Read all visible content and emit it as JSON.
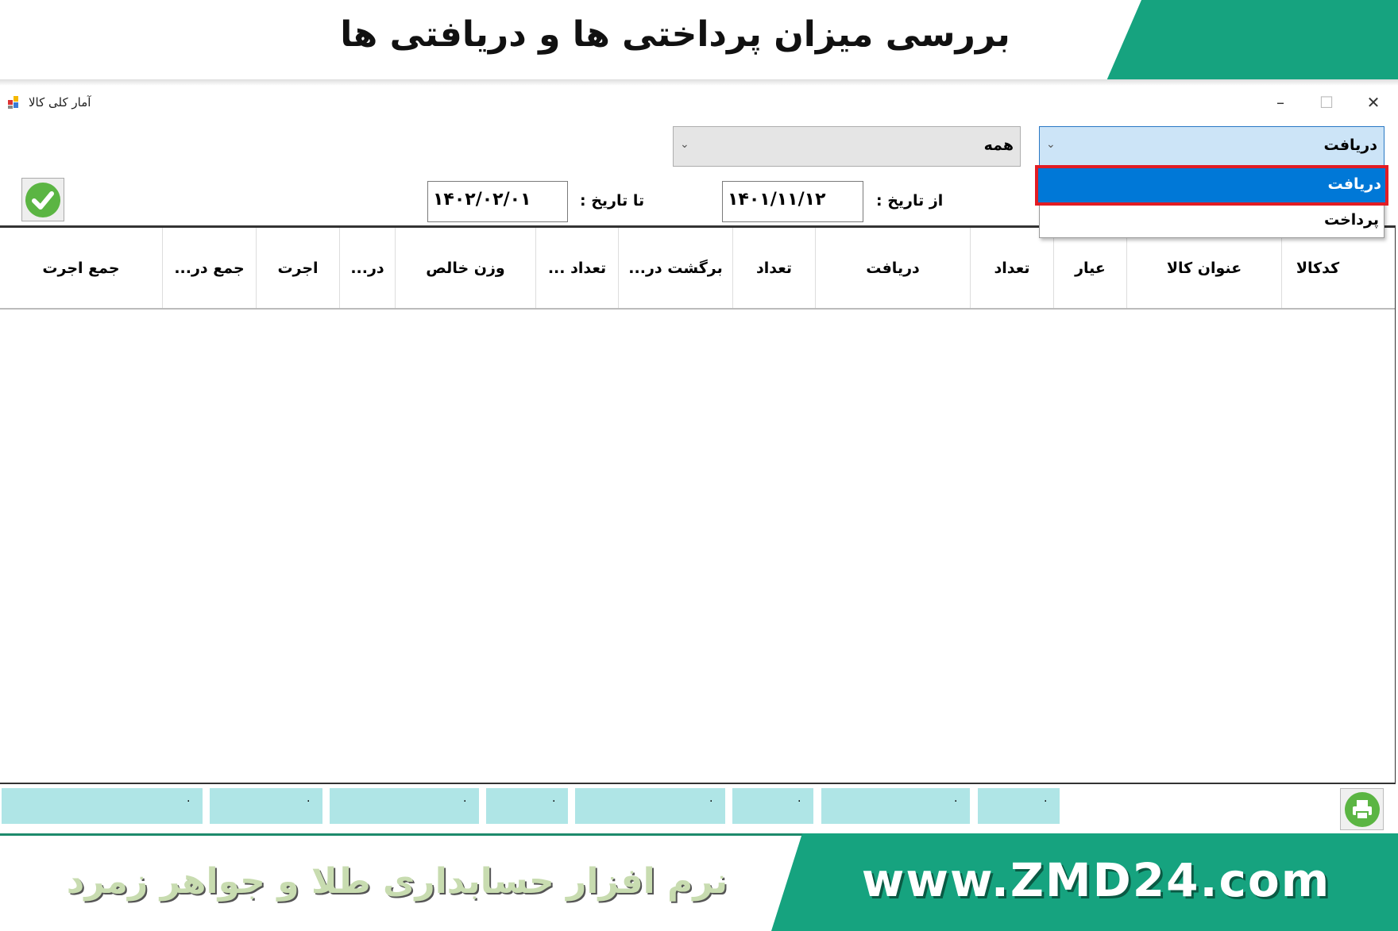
{
  "banner": {
    "title": "بررسی میزان پرداختی ها و دریافتی ها"
  },
  "window": {
    "title": "آمار کلی کالا",
    "minimize": "–",
    "maximize": "☐",
    "close": "✕"
  },
  "filters": {
    "type_combo": "دریافت",
    "type_options": [
      "دریافت",
      "پرداخت"
    ],
    "scope_combo": "همه",
    "from_label": "از تاریخ :",
    "from_date": "۱۴۰۱/۱۱/۱۲",
    "to_label": "تا تاریخ :",
    "to_date": "۱۴۰۲/۰۲/۰۱",
    "chevron": "⌄"
  },
  "grid": {
    "columns": [
      "کدکالا",
      "عنوان کالا",
      "عیار",
      "تعداد",
      "دریافت",
      "تعداد",
      "برگشت در...",
      "تعداد ...",
      "وزن خالص",
      "در...",
      "اجرت",
      "جمع در...",
      "جمع اجرت"
    ]
  },
  "totals": [
    "۰",
    "۰",
    "۰",
    "۰",
    "۰",
    "۰",
    "۰",
    "۰"
  ],
  "footer": {
    "url": "www.ZMD24.com",
    "tagline": "نرم افزار حسابداری طلا و جواهر زمرد"
  },
  "colors": {
    "accent_green": "#16a37f",
    "selection": "#0078d7",
    "highlight_border": "#e21c24",
    "totals_bg": "#afe5e6"
  }
}
